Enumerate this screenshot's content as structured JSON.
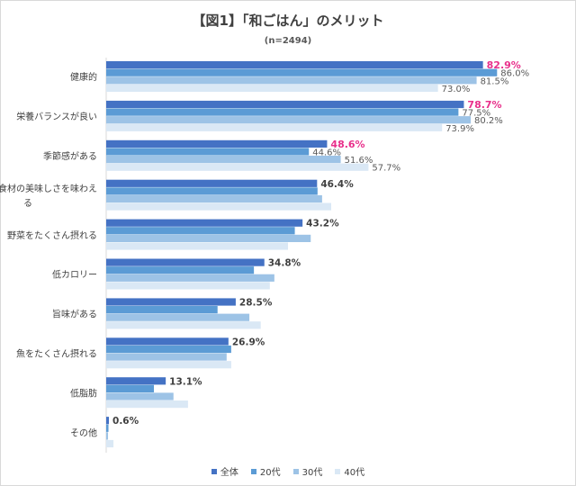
{
  "title": "【図1】「和ごはん」のメリット",
  "subtitle": "(n=2494)",
  "colors": {
    "s0": "#4472c4",
    "s1": "#5b9bd5",
    "s2": "#9dc3e6",
    "s3": "#dae8f5",
    "highlight": "#e8308b"
  },
  "chart_data": {
    "type": "bar",
    "orientation": "horizontal",
    "title": "【図1】「和ごはん」のメリット",
    "subtitle": "(n=2494)",
    "xlabel": "",
    "ylabel": "",
    "xlim": [
      0,
      100
    ],
    "grid": false,
    "legend": "bottom",
    "categories": [
      "健康的",
      "栄養バランスが良い",
      "季節感がある",
      "食材の美味しさを味わえる",
      "野菜をたくさん摂れる",
      "低カロリー",
      "旨味がある",
      "魚をたくさん摂れる",
      "低脂肪",
      "その他"
    ],
    "category_lines": [
      [
        "健康的"
      ],
      [
        "栄養バランスが良い"
      ],
      [
        "季節感がある"
      ],
      [
        "食材の美味しさを味わえ",
        "る"
      ],
      [
        "野菜をたくさん摂れる"
      ],
      [
        "低カロリー"
      ],
      [
        "旨味がある"
      ],
      [
        "魚をたくさん摂れる"
      ],
      [
        "低脂肪"
      ],
      [
        "その他"
      ]
    ],
    "series": [
      {
        "name": "全体",
        "values": [
          82.9,
          78.7,
          48.6,
          46.4,
          43.2,
          34.8,
          28.5,
          26.9,
          13.1,
          0.6
        ]
      },
      {
        "name": "20代",
        "values": [
          86.0,
          77.5,
          44.6,
          46.5,
          41.5,
          32.5,
          24.5,
          27.5,
          10.5,
          0.5
        ]
      },
      {
        "name": "30代",
        "values": [
          81.5,
          80.2,
          51.6,
          47.5,
          45.0,
          37.0,
          31.5,
          26.5,
          14.8,
          0.4
        ]
      },
      {
        "name": "40代",
        "values": [
          73.0,
          73.9,
          57.7,
          49.5,
          40.0,
          36.0,
          34.0,
          27.5,
          18.0,
          1.6
        ]
      }
    ],
    "labels": [
      [
        "82.9%",
        "86.0%",
        "81.5%",
        "73.0%"
      ],
      [
        "78.7%",
        "77.5%",
        "80.2%",
        "73.9%"
      ],
      [
        "48.6%",
        "44.6%",
        "51.6%",
        "57.7%"
      ],
      [
        "46.4%",
        "",
        "",
        ""
      ],
      [
        "43.2%",
        "",
        "",
        ""
      ],
      [
        "34.8%",
        "",
        "",
        ""
      ],
      [
        "28.5%",
        "",
        "",
        ""
      ],
      [
        "26.9%",
        "",
        "",
        ""
      ],
      [
        "13.1%",
        "",
        "",
        ""
      ],
      [
        "0.6%",
        "",
        "",
        ""
      ]
    ],
    "highlighted_labels": [
      "82.9%",
      "78.7%",
      "48.6%"
    ]
  }
}
